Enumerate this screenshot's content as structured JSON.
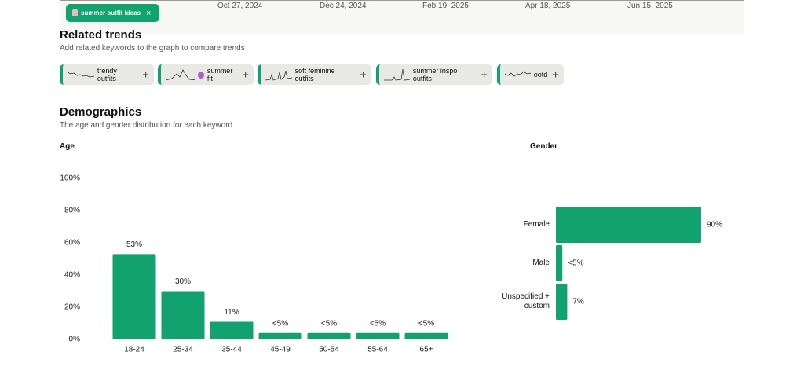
{
  "timeline": {
    "dates": [
      "Oct 27, 2024",
      "Dec 24, 2024",
      "Feb 19, 2025",
      "Apr 18, 2025",
      "Jun 15, 2025"
    ]
  },
  "keyword_chip": "summer outfit ideas",
  "related_trends": {
    "title": "Related trends",
    "subtitle": "Add related keywords to the graph to compare trends",
    "keywords": [
      "trendy outfits",
      "summer fit",
      "soft feminine outfits",
      "summer inspo outfits",
      "ootd"
    ]
  },
  "demographics": {
    "title": "Demographics",
    "subtitle": "The age and gender distribution for each keyword"
  },
  "chart_data": [
    {
      "type": "bar",
      "title": "Age",
      "categories": [
        "18-24",
        "25-34",
        "35-44",
        "45-49",
        "50-54",
        "55-64",
        "65+"
      ],
      "values": [
        53,
        30,
        11,
        4,
        4,
        4,
        4
      ],
      "value_labels": [
        "53%",
        "30%",
        "11%",
        "<5%",
        "<5%",
        "<5%",
        "<5%"
      ],
      "color": "#12a26f",
      "ylim": [
        0,
        100
      ],
      "yticks": [
        {
          "value": 0,
          "label": "0%"
        },
        {
          "value": 20,
          "label": "20%"
        },
        {
          "value": 40,
          "label": "40%"
        },
        {
          "value": 60,
          "label": "60%"
        },
        {
          "value": 80,
          "label": "80%"
        },
        {
          "value": 100,
          "label": "100%"
        }
      ]
    },
    {
      "type": "hbar",
      "title": "Gender",
      "categories": [
        "Female",
        "Male",
        "Unspecified + custom"
      ],
      "values": [
        90,
        4,
        7
      ],
      "value_labels": [
        "90%",
        "<5%",
        "7%"
      ],
      "color": "#12a26f",
      "xlim": [
        0,
        100
      ]
    }
  ]
}
